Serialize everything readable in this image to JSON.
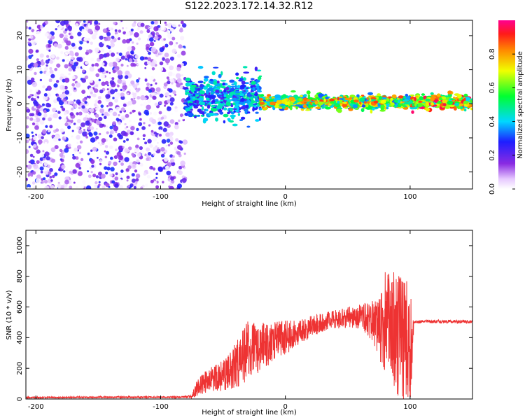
{
  "title": "S122.2023.172.14.32.R12",
  "colors": {
    "snr_line": "#ee3333",
    "scatter_dots": "#8a2be2",
    "axes": "#000000"
  },
  "chart_data": [
    {
      "type": "heatmap",
      "xlabel": "Height of straight line (km)",
      "ylabel": "Frequency (Hz)",
      "xlim": [
        -208,
        150
      ],
      "ylim": [
        -25,
        24.5
      ],
      "xticks": [
        -200,
        -100,
        0,
        100
      ],
      "yticks": [
        -20,
        -10,
        0,
        10,
        20
      ],
      "grid": false,
      "colorbar": {
        "label": "Normalized spectral amplitude",
        "range": [
          0,
          1
        ],
        "ticks": [
          0.0,
          0.2,
          0.4,
          0.6,
          0.8
        ],
        "colormap": "rainbow (white-purple-blue-cyan-green-yellow-orange-red-magenta)"
      },
      "regions": [
        {
          "x_range": [
            -208,
            -80
          ],
          "description_value": "broadband low-amplitude noise across all frequencies",
          "amplitude_range": [
            0.0,
            0.3
          ]
        },
        {
          "x_range": [
            -80,
            -20
          ],
          "center_freq_hz": 2,
          "freq_spread_hz": 5,
          "amplitude_range": [
            0.2,
            0.5
          ]
        },
        {
          "x_range": [
            -20,
            100
          ],
          "center_freq_hz": 0.5,
          "freq_spread_hz": 1.5,
          "amplitude_range": [
            0.3,
            0.9
          ]
        },
        {
          "x_range": [
            100,
            150
          ],
          "center_freq_hz": 0.5,
          "freq_spread_hz": 1.5,
          "amplitude_range": [
            0.4,
            1.0
          ]
        }
      ]
    },
    {
      "type": "line",
      "xlabel": "Height of straight line (km)",
      "ylabel": "SNR (10 * v/v)",
      "xlim": [
        -208,
        150
      ],
      "ylim": [
        0,
        1100
      ],
      "xticks": [
        -200,
        -100,
        0,
        100
      ],
      "yticks": [
        0,
        200,
        400,
        600,
        800,
        1000
      ],
      "grid": false,
      "series": [
        {
          "color": "#ee3333",
          "x": [
            -208,
            -180,
            -150,
            -120,
            -90,
            -75,
            -70,
            -60,
            -50,
            -40,
            -30,
            -20,
            -10,
            0,
            10,
            20,
            30,
            40,
            50,
            60,
            70,
            75,
            80,
            85,
            90,
            95,
            100,
            103,
            110,
            120,
            130,
            140,
            150
          ],
          "y": [
            10,
            10,
            12,
            12,
            12,
            15,
            80,
            130,
            150,
            220,
            310,
            330,
            380,
            400,
            430,
            470,
            500,
            520,
            530,
            540,
            500,
            450,
            500,
            480,
            420,
            400,
            300,
            500,
            505,
            505,
            505,
            505,
            505
          ],
          "noise_amplitude": [
            5,
            5,
            5,
            5,
            5,
            10,
            60,
            80,
            100,
            150,
            200,
            170,
            130,
            110,
            90,
            70,
            60,
            60,
            70,
            80,
            140,
            200,
            350,
            350,
            400,
            450,
            400,
            15,
            10,
            10,
            10,
            10,
            10
          ]
        }
      ]
    }
  ]
}
